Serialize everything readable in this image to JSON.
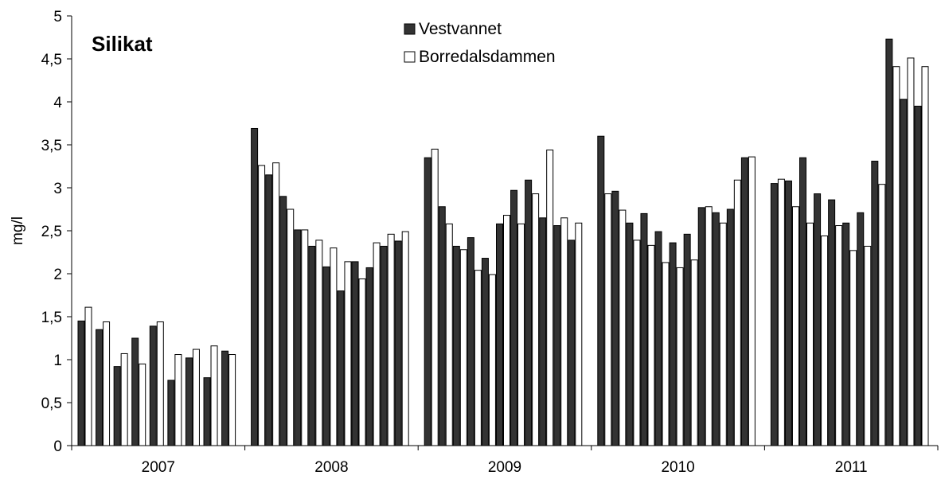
{
  "chart_data": {
    "type": "bar",
    "title": "Silikat",
    "ylabel": "mg/l",
    "xlabel": "",
    "ylim": [
      0,
      5
    ],
    "yticks": [
      "0",
      "0,5",
      "1",
      "1,5",
      "2",
      "2,5",
      "3",
      "3,5",
      "4",
      "4,5",
      "5"
    ],
    "groups": [
      "2007",
      "2008",
      "2009",
      "2010",
      "2011"
    ],
    "legend_position": "top-center",
    "colors": {
      "Vestvannet": "#333333",
      "Borredalsdammen": "#ffffff",
      "outline": "#000000"
    },
    "series": [
      {
        "name": "Vestvannet",
        "values": [
          [
            1.45,
            1.35,
            0.92,
            1.25,
            1.39,
            0.76,
            1.02,
            0.79,
            1.1
          ],
          [
            3.69,
            3.15,
            2.9,
            2.51,
            2.32,
            2.08,
            1.8,
            2.14,
            2.07,
            2.32,
            2.38
          ],
          [
            3.35,
            2.78,
            2.32,
            2.42,
            2.18,
            2.58,
            2.97,
            3.09,
            2.65,
            2.56,
            2.39
          ],
          [
            3.6,
            2.96,
            2.59,
            2.7,
            2.49,
            2.36,
            2.46,
            2.77,
            2.71,
            2.75,
            3.35
          ],
          [
            3.05,
            3.08,
            3.35,
            2.93,
            2.86,
            2.59,
            2.71,
            3.31,
            4.73,
            4.03,
            3.95
          ]
        ]
      },
      {
        "name": "Borredalsdammen",
        "values": [
          [
            1.61,
            1.44,
            1.07,
            0.95,
            1.44,
            1.06,
            1.12,
            1.16,
            1.06
          ],
          [
            3.26,
            3.29,
            2.75,
            2.51,
            2.39,
            2.3,
            2.14,
            1.94,
            2.36,
            2.46,
            2.49
          ],
          [
            3.45,
            2.58,
            2.28,
            2.04,
            1.99,
            2.68,
            2.58,
            2.93,
            3.44,
            2.65,
            2.59
          ],
          [
            2.93,
            2.74,
            2.39,
            2.33,
            2.13,
            2.07,
            2.16,
            2.78,
            2.59,
            3.09,
            3.36
          ],
          [
            3.1,
            2.78,
            2.59,
            2.44,
            2.56,
            2.27,
            2.32,
            3.04,
            4.41,
            4.51,
            4.41
          ]
        ]
      }
    ]
  }
}
